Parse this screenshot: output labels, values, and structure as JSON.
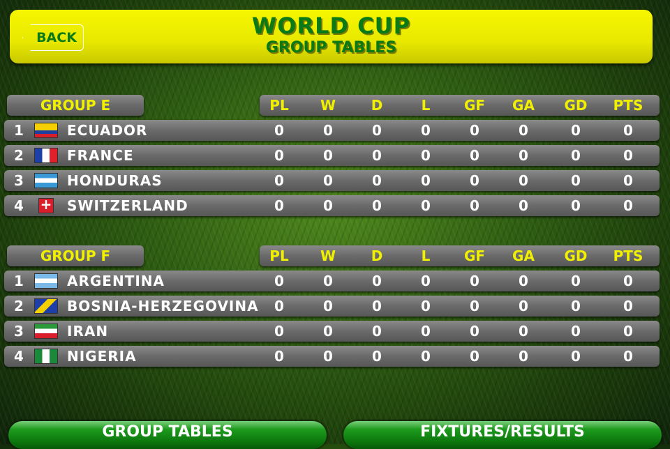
{
  "header": {
    "back_label": "BACK",
    "title": "WORLD CUP",
    "subtitle": "GROUP TABLES"
  },
  "columns": [
    "PL",
    "W",
    "D",
    "L",
    "GF",
    "GA",
    "GD",
    "PTS"
  ],
  "groups": [
    {
      "label": "GROUP E",
      "teams": [
        {
          "pos": "1",
          "name": "ECUADOR",
          "flag": "ecuador",
          "stats": [
            "0",
            "0",
            "0",
            "0",
            "0",
            "0",
            "0",
            "0"
          ]
        },
        {
          "pos": "2",
          "name": "FRANCE",
          "flag": "france",
          "stats": [
            "0",
            "0",
            "0",
            "0",
            "0",
            "0",
            "0",
            "0"
          ]
        },
        {
          "pos": "3",
          "name": "HONDURAS",
          "flag": "honduras",
          "stats": [
            "0",
            "0",
            "0",
            "0",
            "0",
            "0",
            "0",
            "0"
          ]
        },
        {
          "pos": "4",
          "name": "SWITZERLAND",
          "flag": "switzerland",
          "stats": [
            "0",
            "0",
            "0",
            "0",
            "0",
            "0",
            "0",
            "0"
          ]
        }
      ]
    },
    {
      "label": "GROUP F",
      "teams": [
        {
          "pos": "1",
          "name": "ARGENTINA",
          "flag": "argentina",
          "stats": [
            "0",
            "0",
            "0",
            "0",
            "0",
            "0",
            "0",
            "0"
          ]
        },
        {
          "pos": "2",
          "name": "BOSNIA-HERZEGOVINA",
          "flag": "bosnia",
          "stats": [
            "0",
            "0",
            "0",
            "0",
            "0",
            "0",
            "0",
            "0"
          ]
        },
        {
          "pos": "3",
          "name": "IRAN",
          "flag": "iran",
          "stats": [
            "0",
            "0",
            "0",
            "0",
            "0",
            "0",
            "0",
            "0"
          ]
        },
        {
          "pos": "4",
          "name": "NIGERIA",
          "flag": "nigeria",
          "stats": [
            "0",
            "0",
            "0",
            "0",
            "0",
            "0",
            "0",
            "0"
          ]
        }
      ]
    }
  ],
  "footer": {
    "group_tables_label": "GROUP TABLES",
    "fixtures_label": "FIXTURES/RESULTS"
  },
  "colors": {
    "header_yellow": "#f0f000",
    "title_green": "#0a7a16",
    "row_gray": "#6a6a6a",
    "button_green": "#0e7a0e"
  }
}
